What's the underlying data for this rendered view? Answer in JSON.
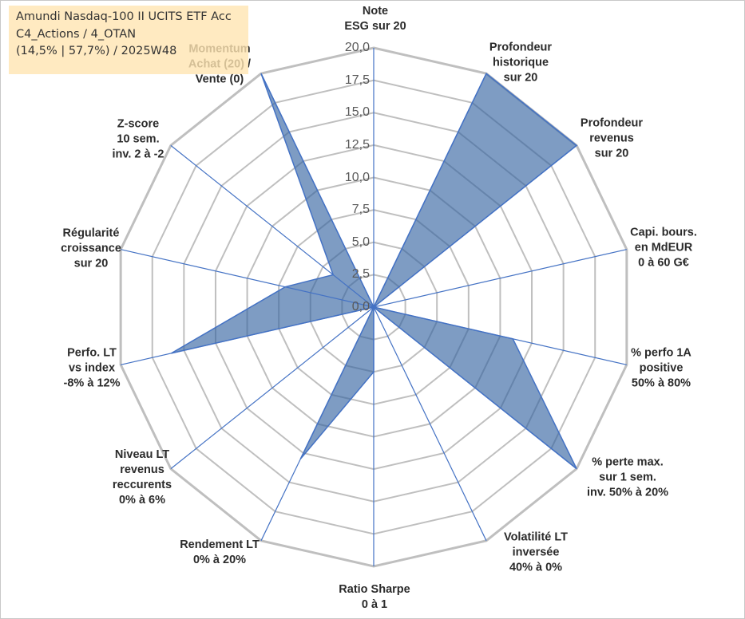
{
  "title_box": {
    "line1": "Amundi Nasdaq-100 II UCITS ETF Acc",
    "line2": "C4_Actions / 4_OTAN",
    "line3": "(14,5% | 57,7%) / 2025W48"
  },
  "chart_data": {
    "type": "radar",
    "title": "Amundi Nasdaq-100 II UCITS ETF Acc",
    "r_range": [
      0,
      20
    ],
    "tick_labels": [
      "0,0",
      "2,5",
      "5,0",
      "7,5",
      "10,0",
      "12,5",
      "15,0",
      "17,5",
      "20,0"
    ],
    "axes": [
      "Note\nESG sur 20",
      "Profondeur\nhistorique\nsur 20",
      "Profondeur\nrevenus\nsur 20",
      "Capi. bours.\nen MdEUR\n0 à 60 G€",
      "% perfo 1A\npositive\n50% à 80%",
      "% perte max.\nsur 1 sem.\ninv. 50% à 20%",
      "Volatilité LT\ninversée\n40% à 0%",
      "Ratio Sharpe\n0 à 1",
      "Rendement LT\n0% à 20%",
      "Niveau LT\nrevenus\nreccurents\n0% à 6%",
      "Perfo. LT\nvs index\n-8% à 12%",
      "Régularité\ncroissance\nsur 20",
      "Z-score\n10 sem.\ninv. 2 à -2",
      "Momentum\nAchat (20) /\nVente (0)"
    ],
    "series": [
      {
        "name": "Amundi Nasdaq-100 II UCITS ETF Acc",
        "values": [
          0,
          20,
          20,
          0,
          11,
          20,
          0,
          5,
          13,
          0,
          16,
          7,
          4,
          20
        ]
      }
    ],
    "colors": {
      "fill": "#2e5f9e",
      "stroke": "#4472c4",
      "grid": "#bfbfbf",
      "spoke": "#4472c4"
    }
  }
}
